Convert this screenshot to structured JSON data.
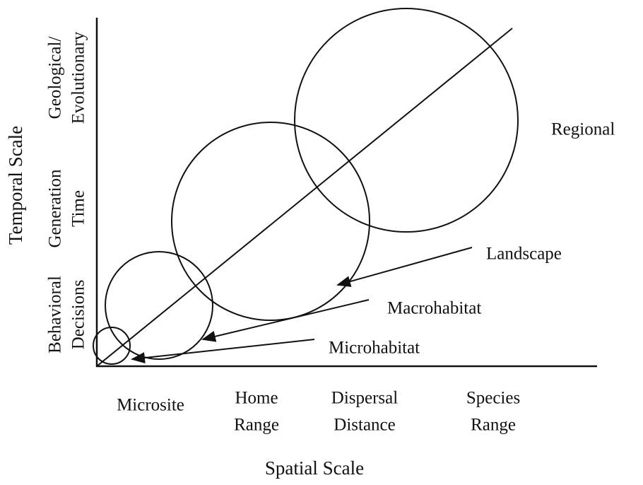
{
  "axes": {
    "x_label": "Spatial Scale",
    "y_label": "Temporal Scale",
    "x_ticks": [
      [
        "Microsite"
      ],
      [
        "Home",
        "Range"
      ],
      [
        "Dispersal",
        "Distance"
      ],
      [
        "Species",
        "Range"
      ]
    ],
    "y_ticks": [
      [
        "Behavioral",
        "Decisions"
      ],
      [
        "Generation",
        "Time"
      ],
      [
        "Geological/",
        "Evolutionary"
      ]
    ]
  },
  "scales": [
    "Microhabitat",
    "Macrohabitat",
    "Landscape",
    "Regional"
  ]
}
